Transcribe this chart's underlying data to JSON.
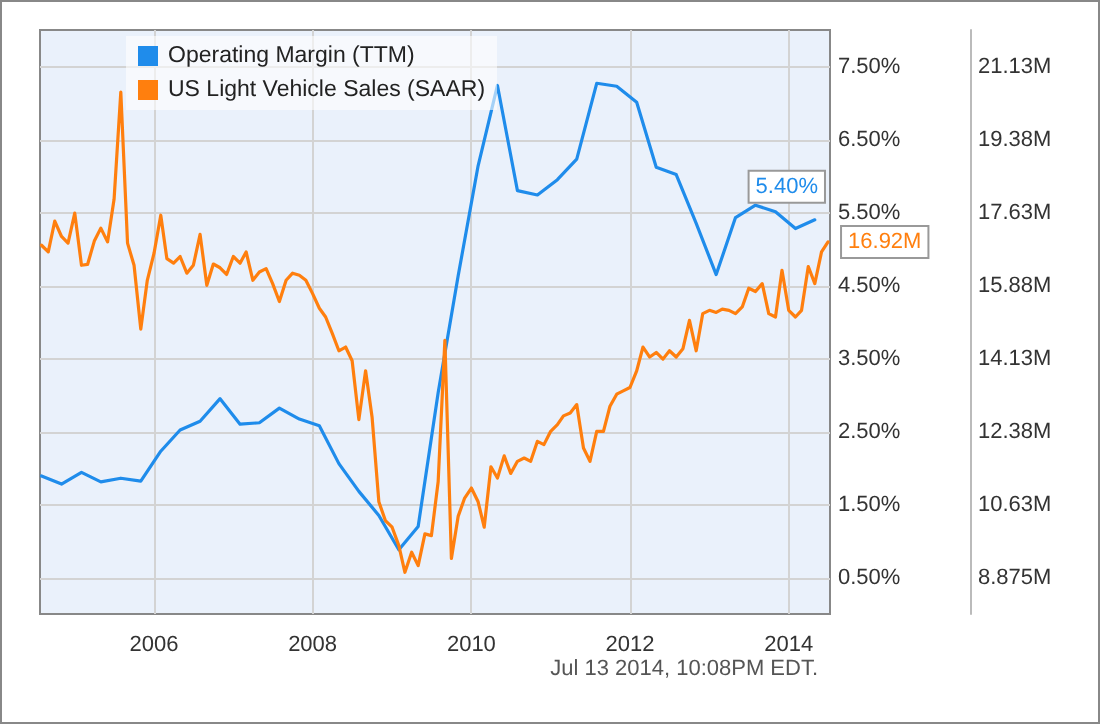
{
  "chart_data": {
    "type": "line",
    "annotations": [
      "Jul 13 2014, 10:08PM EDT."
    ],
    "xlim": [
      "2004-07-25",
      "2014-07-10"
    ],
    "xticks": [
      "2006",
      "2008",
      "2010",
      "2012",
      "2014"
    ],
    "ylim": [
      0,
      8
    ],
    "yticks": [
      {
        "value": 0.5,
        "label": "0.50%"
      },
      {
        "value": 1.5,
        "label": "1.50%"
      },
      {
        "value": 2.5,
        "label": "2.50%"
      },
      {
        "value": 3.5,
        "label": "3.50%"
      },
      {
        "value": 4.5,
        "label": "4.50%"
      },
      {
        "value": 5.5,
        "label": "5.50%"
      },
      {
        "value": 6.5,
        "label": "6.50%"
      },
      {
        "value": 7.5,
        "label": "7.50%"
      }
    ],
    "y2lim": [
      8,
      22
    ],
    "y2ticks": [
      {
        "value": 8.875,
        "label": "8.875M"
      },
      {
        "value": 10.625,
        "label": "10.63M"
      },
      {
        "value": 12.375,
        "label": "12.38M"
      },
      {
        "value": 14.125,
        "label": "14.13M"
      },
      {
        "value": 15.875,
        "label": "15.88M"
      },
      {
        "value": 17.625,
        "label": "17.63M"
      },
      {
        "value": 19.375,
        "label": "19.38M"
      },
      {
        "value": 21.125,
        "label": "21.13M"
      }
    ],
    "grid": true,
    "legend": "top left",
    "marker": "none",
    "series": [
      {
        "name": "Operating Margin (TTM)",
        "color": "#1f8ceb",
        "x": [
          "2004-08",
          "2004-11",
          "2005-02",
          "2005-05",
          "2005-08",
          "2005-11",
          "2006-02",
          "2006-05",
          "2006-08",
          "2006-11",
          "2007-02",
          "2007-05",
          "2007-08",
          "2007-11",
          "2008-02",
          "2008-05",
          "2008-08",
          "2008-11",
          "2009-02",
          "2009-05",
          "2009-08",
          "2009-11",
          "2010-02",
          "2010-05",
          "2010-08",
          "2010-11",
          "2011-02",
          "2011-05",
          "2011-08",
          "2011-11",
          "2012-02",
          "2012-05",
          "2012-08",
          "2012-11",
          "2013-02",
          "2013-05",
          "2013-08",
          "2013-11",
          "2014-02",
          "2014-05"
        ],
        "values": [
          1.89,
          1.78,
          1.94,
          1.81,
          1.86,
          1.82,
          2.23,
          2.52,
          2.64,
          2.95,
          2.6,
          2.62,
          2.82,
          2.67,
          2.58,
          2.06,
          1.68,
          1.35,
          0.88,
          1.2,
          3.03,
          4.63,
          6.14,
          7.24,
          5.8,
          5.74,
          5.95,
          6.23,
          7.27,
          7.23,
          7.01,
          6.12,
          6.02,
          5.35,
          4.65,
          5.43,
          5.6,
          5.51,
          5.28,
          5.4
        ],
        "value_labels": [
          null,
          null,
          null,
          null,
          null,
          null,
          null,
          null,
          null,
          null,
          null,
          null,
          null,
          null,
          null,
          null,
          null,
          null,
          null,
          null,
          null,
          null,
          null,
          null,
          null,
          null,
          null,
          null,
          null,
          null,
          null,
          null,
          null,
          null,
          null,
          null,
          null,
          null,
          null,
          "5.40%"
        ]
      },
      {
        "name": "US Light Vehicle Sales (SAAR)",
        "color": "#ff7f0e",
        "axis": "y2",
        "x": [
          "2004-08",
          "2004-09",
          "2004-10",
          "2004-11",
          "2004-12",
          "2005-01",
          "2005-02",
          "2005-03",
          "2005-04",
          "2005-05",
          "2005-06",
          "2005-07",
          "2005-08",
          "2005-09",
          "2005-10",
          "2005-11",
          "2005-12",
          "2006-01",
          "2006-02",
          "2006-03",
          "2006-04",
          "2006-05",
          "2006-06",
          "2006-07",
          "2006-08",
          "2006-09",
          "2006-10",
          "2006-11",
          "2006-12",
          "2007-01",
          "2007-02",
          "2007-03",
          "2007-04",
          "2007-05",
          "2007-06",
          "2007-07",
          "2007-08",
          "2007-09",
          "2007-10",
          "2007-11",
          "2007-12",
          "2008-01",
          "2008-02",
          "2008-03",
          "2008-04",
          "2008-05",
          "2008-06",
          "2008-07",
          "2008-08",
          "2008-09",
          "2008-10",
          "2008-11",
          "2008-12",
          "2009-01",
          "2009-02",
          "2009-03",
          "2009-04",
          "2009-05",
          "2009-06",
          "2009-07",
          "2009-08",
          "2009-09",
          "2009-10",
          "2009-11",
          "2009-12",
          "2010-01",
          "2010-02",
          "2010-03",
          "2010-04",
          "2010-05",
          "2010-06",
          "2010-07",
          "2010-08",
          "2010-09",
          "2010-10",
          "2010-11",
          "2010-12",
          "2011-01",
          "2011-02",
          "2011-03",
          "2011-04",
          "2011-05",
          "2011-06",
          "2011-07",
          "2011-08",
          "2011-09",
          "2011-10",
          "2011-11",
          "2011-12",
          "2012-01",
          "2012-02",
          "2012-03",
          "2012-04",
          "2012-05",
          "2012-06",
          "2012-07",
          "2012-08",
          "2012-09",
          "2012-10",
          "2012-11",
          "2012-12",
          "2013-01",
          "2013-02",
          "2013-03",
          "2013-04",
          "2013-05",
          "2013-06",
          "2013-07",
          "2013-08",
          "2013-09",
          "2013-10",
          "2013-11",
          "2013-12",
          "2014-01",
          "2014-02",
          "2014-03",
          "2014-04",
          "2014-05",
          "2014-06",
          "2014-07"
        ],
        "values": [
          16.84,
          16.68,
          17.42,
          17.05,
          16.89,
          17.61,
          16.36,
          16.38,
          16.94,
          17.25,
          16.92,
          17.94,
          20.51,
          16.89,
          16.36,
          14.83,
          16.0,
          16.65,
          17.56,
          16.52,
          16.41,
          16.57,
          16.17,
          16.36,
          17.1,
          15.88,
          16.39,
          16.3,
          16.14,
          16.57,
          16.41,
          16.68,
          16.0,
          16.2,
          16.28,
          15.92,
          15.49,
          16.0,
          16.17,
          16.12,
          16.0,
          15.68,
          15.33,
          15.12,
          14.72,
          14.31,
          14.4,
          14.07,
          12.66,
          13.83,
          12.71,
          10.69,
          10.24,
          10.08,
          9.64,
          9.0,
          9.48,
          9.16,
          9.92,
          9.88,
          11.17,
          14.56,
          9.33,
          10.34,
          10.78,
          11.02,
          10.69,
          10.08,
          11.53,
          11.26,
          11.79,
          11.37,
          11.66,
          11.74,
          11.66,
          12.14,
          12.06,
          12.38,
          12.54,
          12.75,
          12.82,
          13.02,
          11.98,
          11.66,
          12.38,
          12.38,
          12.98,
          13.27,
          13.35,
          13.43,
          13.83,
          14.4,
          14.16,
          14.27,
          14.11,
          14.31,
          14.16,
          14.36,
          15.04,
          14.31,
          15.2,
          15.28,
          15.23,
          15.31,
          15.28,
          15.2,
          15.36,
          15.81,
          15.73,
          15.92,
          15.2,
          15.12,
          16.24,
          15.28,
          15.12,
          15.28,
          16.33,
          15.92,
          16.68,
          16.92
        ],
        "value_labels": [
          null,
          null,
          null,
          null,
          null,
          null,
          null,
          null,
          null,
          null,
          null,
          null,
          null,
          null,
          null,
          null,
          null,
          null,
          null,
          null,
          null,
          null,
          null,
          null,
          null,
          null,
          null,
          null,
          null,
          null,
          null,
          null,
          null,
          null,
          null,
          null,
          null,
          null,
          null,
          null,
          null,
          null,
          null,
          null,
          null,
          null,
          null,
          null,
          null,
          null,
          null,
          null,
          null,
          null,
          null,
          null,
          null,
          null,
          null,
          null,
          null,
          null,
          null,
          null,
          null,
          null,
          null,
          null,
          null,
          null,
          null,
          null,
          null,
          null,
          null,
          null,
          null,
          null,
          null,
          null,
          null,
          null,
          null,
          null,
          null,
          null,
          null,
          null,
          null,
          null,
          null,
          null,
          null,
          null,
          null,
          null,
          null,
          null,
          null,
          null,
          null,
          null,
          null,
          null,
          null,
          null,
          null,
          null,
          null,
          null,
          null,
          null,
          null,
          null,
          null,
          null,
          null,
          null,
          null,
          "16.92M"
        ]
      }
    ]
  }
}
